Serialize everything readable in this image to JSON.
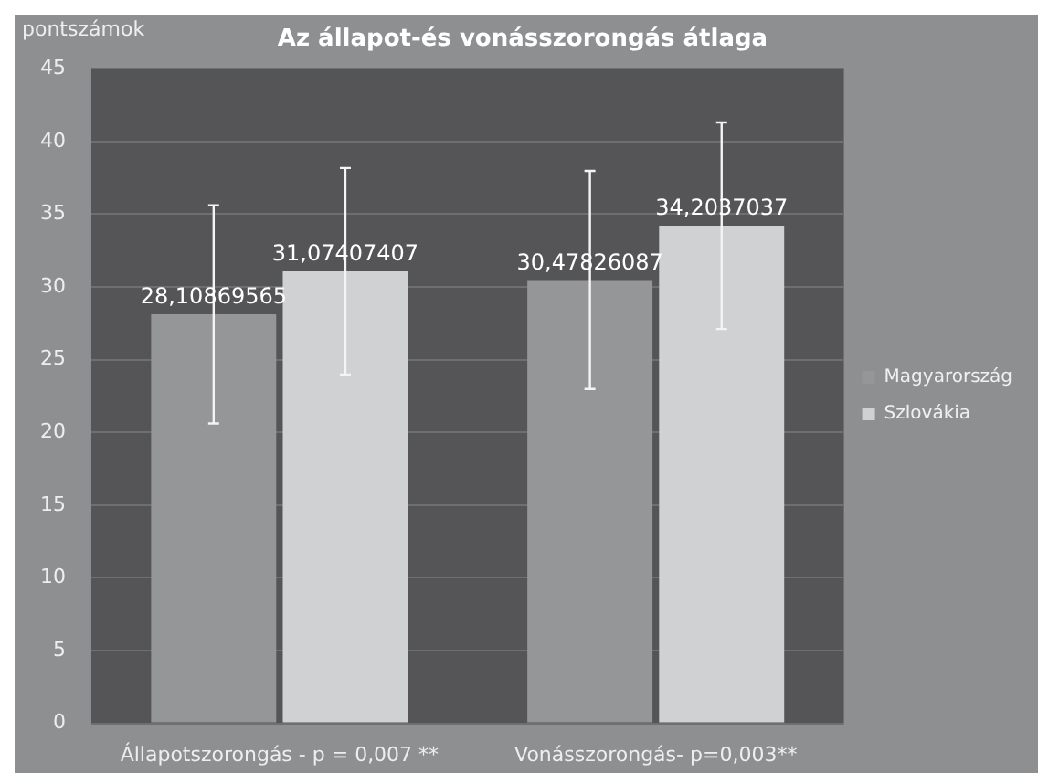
{
  "chart_data": {
    "type": "bar",
    "title": "Az állapot-és vonásszorongás átlaga",
    "ylabel": "pontszámok",
    "categories": [
      "Állapotszorongás - p = 0,007 **",
      "Vonásszorongás- p=0,003**"
    ],
    "series": [
      {
        "name": "Magyarország",
        "color": "#959698",
        "values": [
          28.10869565,
          30.47826087
        ],
        "errors": [
          7.5,
          7.5
        ],
        "value_labels": [
          "28,10869565",
          "30,47826087"
        ]
      },
      {
        "name": "Szlovákia",
        "color": "#d0d1d3",
        "values": [
          31.07407407,
          34.2037037
        ],
        "errors": [
          7.1,
          7.1
        ],
        "value_labels": [
          "31,07407407",
          "34,2037037"
        ]
      }
    ],
    "ylim": [
      0,
      45
    ],
    "yticks": [
      0,
      5,
      10,
      15,
      20,
      25,
      30,
      35,
      40,
      45
    ],
    "grid": "y",
    "legend": "right"
  }
}
